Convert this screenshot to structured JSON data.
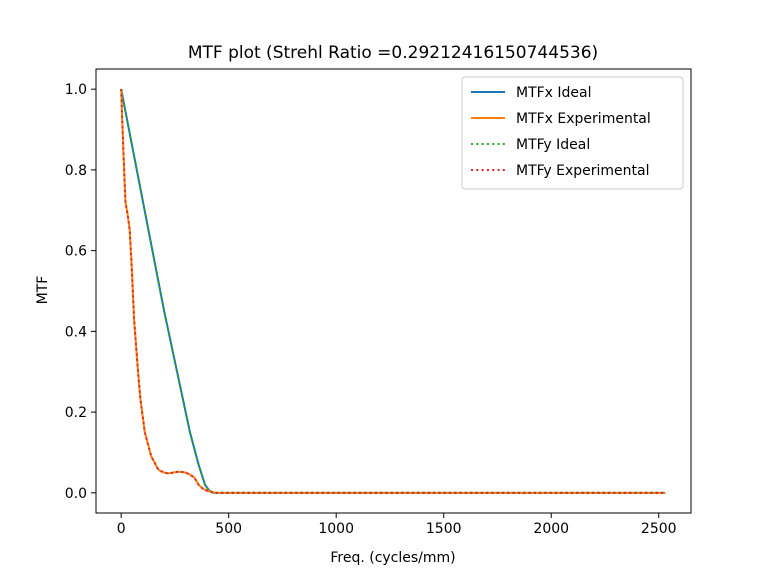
{
  "chart_data": {
    "type": "line",
    "title": "MTF plot (Strehl Ratio =0.29212416150744536)",
    "xlabel": "Freq. (cycles/mm)",
    "ylabel": "MTF",
    "xlim": [
      -117,
      2650
    ],
    "ylim": [
      -0.05,
      1.05
    ],
    "xticks": [
      0,
      500,
      1000,
      1500,
      2000,
      2500
    ],
    "yticks": [
      0.0,
      0.2,
      0.4,
      0.6,
      0.8,
      1.0
    ],
    "ytick_labels": [
      "0.0",
      "0.2",
      "0.4",
      "0.6",
      "0.8",
      "1.0"
    ],
    "grid": false,
    "legend_position": "top-right",
    "series": [
      {
        "name": "MTFx Ideal",
        "color": "#1f77b4",
        "style": "solid",
        "x": [
          0,
          40,
          80,
          120,
          160,
          200,
          240,
          280,
          320,
          360,
          390,
          410,
          430,
          500,
          1000,
          1500,
          2000,
          2530
        ],
        "y": [
          1.0,
          0.89,
          0.78,
          0.67,
          0.56,
          0.45,
          0.35,
          0.25,
          0.15,
          0.07,
          0.02,
          0.005,
          0.0,
          0.0,
          0.0,
          0.0,
          0.0,
          0.0
        ]
      },
      {
        "name": "MTFx Experimental",
        "color": "#ff7f0e",
        "style": "solid",
        "x": [
          0,
          10,
          20,
          30,
          40,
          50,
          60,
          70,
          80,
          90,
          100,
          110,
          120,
          130,
          140,
          150,
          160,
          170,
          180,
          200,
          220,
          240,
          260,
          280,
          300,
          320,
          340,
          360,
          380,
          400,
          420,
          440,
          500,
          1000,
          1500,
          2000,
          2530
        ],
        "y": [
          1.0,
          0.85,
          0.72,
          0.69,
          0.65,
          0.55,
          0.43,
          0.36,
          0.29,
          0.23,
          0.19,
          0.15,
          0.13,
          0.11,
          0.09,
          0.08,
          0.07,
          0.06,
          0.055,
          0.05,
          0.048,
          0.05,
          0.052,
          0.052,
          0.05,
          0.045,
          0.038,
          0.02,
          0.01,
          0.005,
          0.002,
          0.0,
          0.0,
          0.0,
          0.0,
          0.0,
          0.0
        ]
      },
      {
        "name": "MTFy Ideal",
        "color": "#2ca02c",
        "style": "dotted",
        "x": [
          0,
          40,
          80,
          120,
          160,
          200,
          240,
          280,
          320,
          360,
          390,
          410,
          430,
          500,
          1000,
          1500,
          2000,
          2530
        ],
        "y": [
          1.0,
          0.89,
          0.78,
          0.67,
          0.56,
          0.45,
          0.35,
          0.25,
          0.15,
          0.07,
          0.02,
          0.005,
          0.0,
          0.0,
          0.0,
          0.0,
          0.0,
          0.0
        ]
      },
      {
        "name": "MTFy Experimental",
        "color": "#d62728",
        "style": "dotted",
        "x": [
          0,
          10,
          20,
          30,
          40,
          50,
          60,
          70,
          80,
          90,
          100,
          110,
          120,
          130,
          140,
          150,
          160,
          170,
          180,
          200,
          220,
          240,
          260,
          280,
          300,
          320,
          340,
          360,
          380,
          400,
          420,
          440,
          500,
          1000,
          1500,
          2000,
          2530
        ],
        "y": [
          1.0,
          0.85,
          0.72,
          0.69,
          0.65,
          0.55,
          0.43,
          0.36,
          0.29,
          0.23,
          0.19,
          0.15,
          0.13,
          0.11,
          0.09,
          0.08,
          0.07,
          0.06,
          0.055,
          0.05,
          0.048,
          0.05,
          0.052,
          0.052,
          0.05,
          0.045,
          0.038,
          0.02,
          0.01,
          0.005,
          0.002,
          0.0,
          0.0,
          0.0,
          0.0,
          0.0,
          0.0
        ]
      }
    ]
  }
}
